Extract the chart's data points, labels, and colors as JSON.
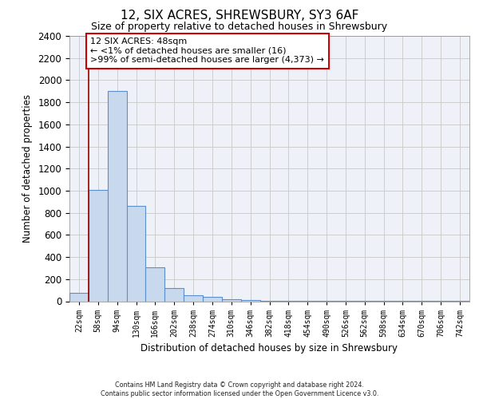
{
  "title": "12, SIX ACRES, SHREWSBURY, SY3 6AF",
  "subtitle": "Size of property relative to detached houses in Shrewsbury",
  "xlabel": "Distribution of detached houses by size in Shrewsbury",
  "ylabel": "Number of detached properties",
  "bin_labels": [
    "22sqm",
    "58sqm",
    "94sqm",
    "130sqm",
    "166sqm",
    "202sqm",
    "238sqm",
    "274sqm",
    "310sqm",
    "346sqm",
    "382sqm",
    "418sqm",
    "454sqm",
    "490sqm",
    "526sqm",
    "562sqm",
    "598sqm",
    "634sqm",
    "670sqm",
    "706sqm",
    "742sqm"
  ],
  "bar_values": [
    75,
    1005,
    1905,
    860,
    305,
    120,
    55,
    40,
    20,
    10,
    5,
    3,
    2,
    2,
    2,
    2,
    1,
    1,
    1,
    1,
    1
  ],
  "bar_color": "#c8d9ee",
  "bar_edge_color": "#5b8fcc",
  "annotation_text": "12 SIX ACRES: 48sqm\n← <1% of detached houses are smaller (16)\n>99% of semi-detached houses are larger (4,373) →",
  "annotation_box_color": "#ffffff",
  "annotation_box_edge": "#cc0000",
  "redline_x": 0.5,
  "ylim": [
    0,
    2400
  ],
  "yticks": [
    0,
    200,
    400,
    600,
    800,
    1000,
    1200,
    1400,
    1600,
    1800,
    2000,
    2200,
    2400
  ],
  "footer_line1": "Contains HM Land Registry data © Crown copyright and database right 2024.",
  "footer_line2": "Contains public sector information licensed under the Open Government Licence v3.0.",
  "background_color": "#ffffff",
  "plot_bg_color": "#eef2f8",
  "grid_color": "#c8c8c8"
}
